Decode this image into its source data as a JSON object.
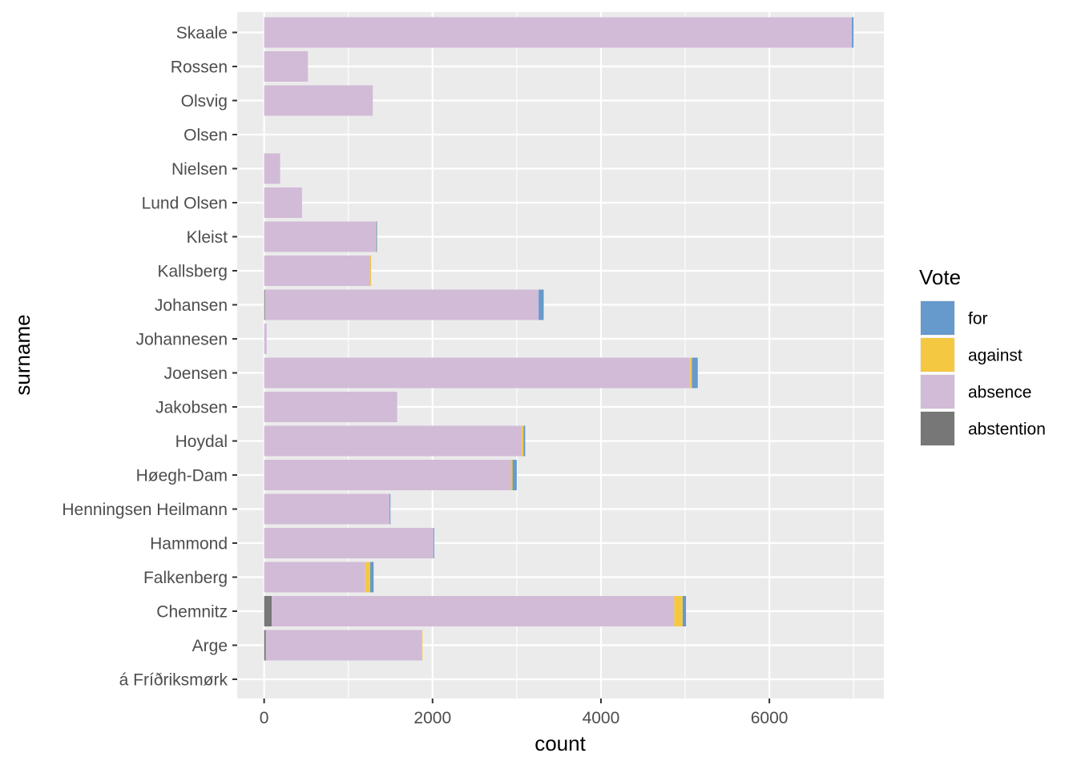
{
  "chart_data": {
    "type": "bar",
    "orientation": "horizontal",
    "stacked": true,
    "xlabel": "count",
    "ylabel": "surname",
    "xlim": [
      -320,
      7360
    ],
    "x_ticks": [
      0,
      2000,
      4000,
      6000
    ],
    "x_tick_labels": [
      "0",
      "2000",
      "4000",
      "6000"
    ],
    "grid": true,
    "legend_position": "right",
    "legend": {
      "title": "Vote",
      "entries": [
        {
          "key": "for",
          "label": "for",
          "color": "#6699CC"
        },
        {
          "key": "against",
          "label": "against",
          "color": "#F5C842"
        },
        {
          "key": "absence",
          "label": "absence",
          "color": "#D2BBD7"
        },
        {
          "key": "abstention",
          "label": "abstention",
          "color": "#777777"
        }
      ]
    },
    "stack_order": [
      "abstention",
      "absence",
      "against",
      "for"
    ],
    "categories": [
      "Skaale",
      "Rossen",
      "Olsvig",
      "Olsen",
      "Nielsen",
      "Lund Olsen",
      "Kleist",
      "Kallsberg",
      "Johansen",
      "Johannesen",
      "Joensen",
      "Jakobsen",
      "Hoydal",
      "Høegh-Dam",
      "Henningsen Heilmann",
      "Hammond",
      "Falkenberg",
      "Chemnitz",
      "Arge",
      "á Fríðriksmørk"
    ],
    "series": [
      {
        "name": "abstention",
        "values": [
          0,
          0,
          0,
          0,
          0,
          0,
          0,
          0,
          10,
          0,
          0,
          0,
          0,
          0,
          0,
          0,
          0,
          90,
          20,
          0
        ]
      },
      {
        "name": "absence",
        "values": [
          6980,
          520,
          1290,
          0,
          190,
          450,
          1320,
          1260,
          3250,
          30,
          5060,
          1580,
          3060,
          2930,
          1490,
          2010,
          1200,
          4780,
          1850,
          0
        ]
      },
      {
        "name": "against",
        "values": [
          0,
          0,
          0,
          0,
          0,
          0,
          10,
          10,
          0,
          0,
          20,
          0,
          20,
          20,
          0,
          0,
          60,
          100,
          10,
          0
        ]
      },
      {
        "name": "for",
        "values": [
          20,
          0,
          0,
          0,
          0,
          0,
          10,
          0,
          60,
          0,
          70,
          0,
          20,
          50,
          10,
          10,
          40,
          40,
          0,
          0
        ]
      }
    ]
  }
}
